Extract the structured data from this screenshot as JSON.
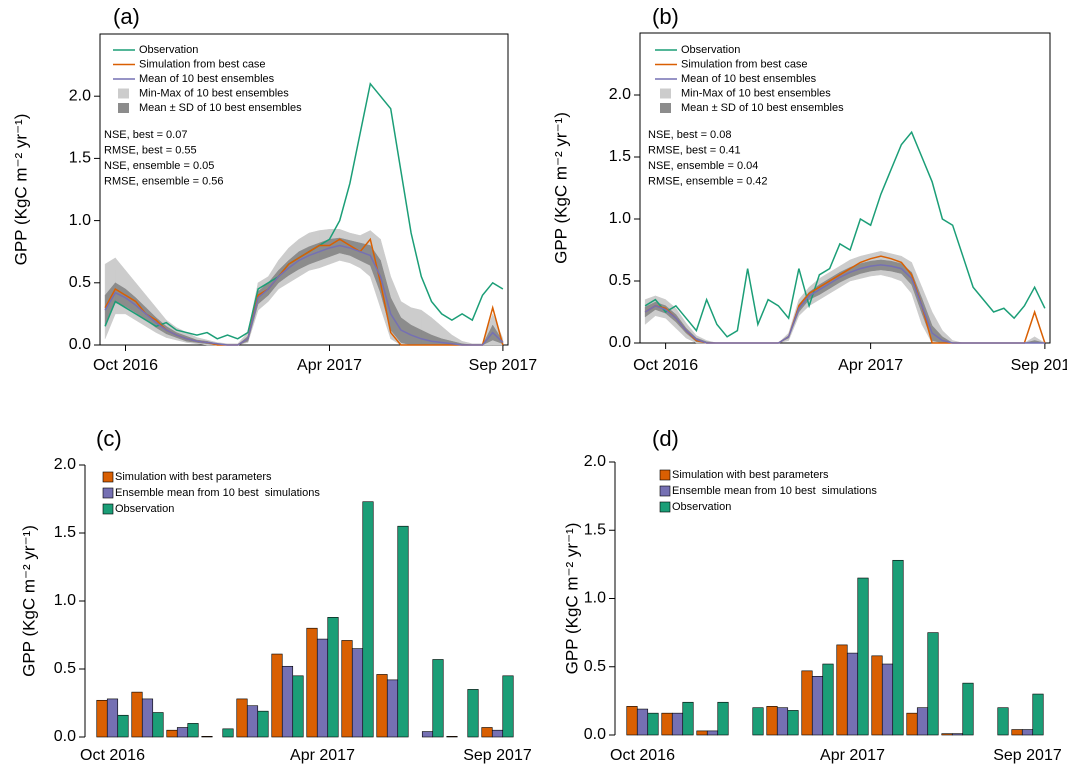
{
  "chart_data": [
    {
      "type": "line",
      "label": "(a)",
      "ylabel": "GPP (KgC m⁻² yr⁻¹)",
      "annotations": [
        "NSE, best = 0.07",
        "RMSE, best = 0.55",
        "NSE, ensemble = 0.05",
        "RMSE, ensemble = 0.56"
      ],
      "categories": [
        null,
        null,
        "Oct 2016",
        null,
        null,
        null,
        null,
        null,
        null,
        null,
        null,
        null,
        null,
        null,
        null,
        null,
        null,
        null,
        null,
        null,
        null,
        null,
        "Apr 2017",
        null,
        null,
        null,
        null,
        null,
        null,
        null,
        null,
        null,
        null,
        null,
        null,
        null,
        null,
        null,
        null,
        "Sep 2017"
      ],
      "ylim": [
        0,
        2.5
      ],
      "yticks": [
        {
          "value": 0,
          "label": "0.0"
        },
        0.5,
        {
          "value": 1,
          "label": "1.0"
        },
        1.5,
        {
          "value": 2,
          "label": "2.0"
        }
      ],
      "series": [
        {
          "name": "Min-Max of 10 best ensembles",
          "color": "#cccccc",
          "upper": [
            0.65,
            0.7,
            0.6,
            0.5,
            0.4,
            0.3,
            0.2,
            0.14,
            0.1,
            0.06,
            0.04,
            0.02,
            0.01,
            0.01,
            0.1,
            0.5,
            0.55,
            0.68,
            0.78,
            0.85,
            0.9,
            0.92,
            0.93,
            0.93,
            0.9,
            0.88,
            0.92,
            0.85,
            0.55,
            0.35,
            0.3,
            0.28,
            0.22,
            0.15,
            0.08,
            0.03,
            0.01,
            0.01,
            0.25,
            0.05
          ],
          "lower": [
            0.05,
            0.25,
            0.25,
            0.2,
            0.15,
            0.1,
            0.06,
            0.04,
            0.02,
            0.01,
            0,
            0,
            0,
            0,
            0.02,
            0.28,
            0.35,
            0.45,
            0.5,
            0.55,
            0.6,
            0.62,
            0.65,
            0.68,
            0.66,
            0.62,
            0.55,
            0.3,
            0.05,
            0,
            0,
            0,
            0,
            0,
            0,
            0,
            0,
            0,
            0,
            0
          ]
        },
        {
          "name": "Mean ± SD of 10 best ensembles",
          "color": "#8c8c8c",
          "upper": [
            0.4,
            0.5,
            0.45,
            0.38,
            0.3,
            0.22,
            0.15,
            0.1,
            0.07,
            0.04,
            0.03,
            0.01,
            0,
            0,
            0.07,
            0.43,
            0.5,
            0.6,
            0.68,
            0.75,
            0.79,
            0.82,
            0.85,
            0.86,
            0.84,
            0.82,
            0.8,
            0.68,
            0.38,
            0.22,
            0.16,
            0.12,
            0.08,
            0.05,
            0.03,
            0.01,
            0,
            0,
            0.16,
            0.03
          ],
          "lower": [
            0.16,
            0.34,
            0.31,
            0.26,
            0.2,
            0.14,
            0.09,
            0.06,
            0.03,
            0.02,
            0.01,
            0,
            0,
            0,
            0.03,
            0.33,
            0.4,
            0.5,
            0.56,
            0.61,
            0.65,
            0.68,
            0.71,
            0.74,
            0.72,
            0.68,
            0.64,
            0.42,
            0.12,
            0.02,
            0,
            0,
            0,
            0,
            0,
            0,
            0,
            0,
            0.04,
            0.01
          ]
        },
        {
          "name": "Observation",
          "color": "#1b9e77",
          "values": [
            0.15,
            0.35,
            0.3,
            0.25,
            0.2,
            0.15,
            0.18,
            0.12,
            0.1,
            0.08,
            0.1,
            0.05,
            0.08,
            0.05,
            0.1,
            0.45,
            0.5,
            0.55,
            0.65,
            0.7,
            0.75,
            0.8,
            0.85,
            1.0,
            1.3,
            1.7,
            2.1,
            2.0,
            1.9,
            1.4,
            0.9,
            0.55,
            0.35,
            0.25,
            0.2,
            0.25,
            0.2,
            0.4,
            0.5,
            0.45
          ]
        },
        {
          "name": "Simulation from best case",
          "color": "#d95f02",
          "values": [
            0.3,
            0.45,
            0.4,
            0.35,
            0.25,
            0.2,
            0.12,
            0.08,
            0.05,
            0.03,
            0.02,
            0,
            0,
            0,
            0.05,
            0.4,
            0.45,
            0.55,
            0.65,
            0.7,
            0.75,
            0.8,
            0.8,
            0.85,
            0.8,
            0.75,
            0.85,
            0.5,
            0.1,
            0,
            0,
            0,
            0,
            0,
            0,
            0,
            0,
            0,
            0.3,
            0
          ]
        },
        {
          "name": "Mean of 10 best ensembles",
          "color": "#7570b3",
          "values": [
            0.28,
            0.42,
            0.38,
            0.32,
            0.25,
            0.18,
            0.12,
            0.08,
            0.05,
            0.03,
            0.02,
            0.01,
            0,
            0,
            0.05,
            0.38,
            0.45,
            0.55,
            0.62,
            0.68,
            0.72,
            0.75,
            0.78,
            0.8,
            0.78,
            0.75,
            0.72,
            0.55,
            0.25,
            0.12,
            0.08,
            0.05,
            0.03,
            0.02,
            0.01,
            0,
            0,
            0,
            0.1,
            0.02
          ]
        }
      ]
    },
    {
      "type": "line",
      "label": "(b)",
      "ylabel": "GPP (KgC m⁻² yr⁻¹)",
      "annotations": [
        "NSE, best = 0.08",
        "RMSE, best = 0.41",
        "NSE, ensemble = 0.04",
        "RMSE, ensemble = 0.42"
      ],
      "categories": [
        null,
        null,
        "Oct 2016",
        null,
        null,
        null,
        null,
        null,
        null,
        null,
        null,
        null,
        null,
        null,
        null,
        null,
        null,
        null,
        null,
        null,
        null,
        null,
        "Apr 2017",
        null,
        null,
        null,
        null,
        null,
        null,
        null,
        null,
        null,
        null,
        null,
        null,
        null,
        null,
        null,
        null,
        "Sep 2017"
      ],
      "ylim": [
        0,
        2.5
      ],
      "yticks": [
        {
          "value": 0,
          "label": "0.0"
        },
        0.5,
        {
          "value": 1,
          "label": "1.0"
        },
        1.5,
        {
          "value": 2,
          "label": "2.0"
        }
      ],
      "series": [
        {
          "name": "Min-Max of 10 best ensembles",
          "color": "#cccccc",
          "upper": [
            0.35,
            0.38,
            0.35,
            0.28,
            0.16,
            0.06,
            0.02,
            0,
            0,
            0,
            0,
            0,
            0,
            0,
            0.08,
            0.35,
            0.45,
            0.52,
            0.57,
            0.62,
            0.67,
            0.7,
            0.72,
            0.74,
            0.72,
            0.7,
            0.65,
            0.45,
            0.25,
            0.1,
            0.02,
            0,
            0,
            0,
            0,
            0,
            0,
            0,
            0.05,
            0
          ],
          "lower": [
            0.15,
            0.22,
            0.2,
            0.12,
            0.04,
            0,
            0,
            0,
            0,
            0,
            0,
            0,
            0,
            0,
            0.02,
            0.22,
            0.3,
            0.35,
            0.4,
            0.45,
            0.5,
            0.52,
            0.54,
            0.55,
            0.53,
            0.5,
            0.4,
            0.15,
            0,
            0,
            0,
            0,
            0,
            0,
            0,
            0,
            0,
            0,
            0,
            0
          ]
        },
        {
          "name": "Mean ± SD of 10 best ensembles",
          "color": "#8c8c8c",
          "upper": [
            0.29,
            0.33,
            0.3,
            0.23,
            0.12,
            0.04,
            0.01,
            0,
            0,
            0,
            0,
            0,
            0,
            0,
            0.06,
            0.31,
            0.41,
            0.47,
            0.52,
            0.57,
            0.61,
            0.64,
            0.66,
            0.67,
            0.66,
            0.64,
            0.57,
            0.36,
            0.14,
            0.05,
            0,
            0,
            0,
            0,
            0,
            0,
            0,
            0,
            0.02,
            0
          ],
          "lower": [
            0.21,
            0.27,
            0.24,
            0.17,
            0.08,
            0.01,
            0,
            0,
            0,
            0,
            0,
            0,
            0,
            0,
            0.04,
            0.25,
            0.35,
            0.39,
            0.44,
            0.49,
            0.53,
            0.56,
            0.58,
            0.59,
            0.58,
            0.56,
            0.47,
            0.24,
            0.02,
            0,
            0,
            0,
            0,
            0,
            0,
            0,
            0,
            0,
            0,
            0
          ]
        },
        {
          "name": "Observation",
          "color": "#1b9e77",
          "values": [
            0.3,
            0.35,
            0.25,
            0.3,
            0.2,
            0.1,
            0.35,
            0.15,
            0.05,
            0.1,
            0.6,
            0.15,
            0.35,
            0.3,
            0.2,
            0.6,
            0.3,
            0.55,
            0.6,
            0.8,
            0.75,
            1.0,
            0.95,
            1.2,
            1.4,
            1.6,
            1.7,
            1.5,
            1.3,
            1.0,
            0.95,
            0.7,
            0.45,
            0.35,
            0.25,
            0.28,
            0.2,
            0.3,
            0.45,
            0.28
          ]
        },
        {
          "name": "Simulation from best case",
          "color": "#d95f02",
          "values": [
            0.25,
            0.3,
            0.28,
            0.2,
            0.1,
            0.02,
            0,
            0,
            0,
            0,
            0,
            0,
            0,
            0,
            0.05,
            0.3,
            0.4,
            0.45,
            0.5,
            0.55,
            0.6,
            0.65,
            0.68,
            0.7,
            0.68,
            0.65,
            0.55,
            0.3,
            0,
            0,
            0,
            0,
            0,
            0,
            0,
            0,
            0,
            0,
            0.25,
            0
          ]
        },
        {
          "name": "Mean of 10 best ensembles",
          "color": "#7570b3",
          "values": [
            0.25,
            0.3,
            0.27,
            0.2,
            0.1,
            0.03,
            0,
            0,
            0,
            0,
            0,
            0,
            0,
            0,
            0.05,
            0.28,
            0.38,
            0.43,
            0.48,
            0.53,
            0.57,
            0.6,
            0.62,
            0.63,
            0.62,
            0.6,
            0.52,
            0.3,
            0.08,
            0.02,
            0,
            0,
            0,
            0,
            0,
            0,
            0,
            0,
            0,
            0
          ]
        }
      ]
    },
    {
      "type": "bar",
      "label": "(c)",
      "ylabel": "GPP (KgC m⁻² yr⁻¹)",
      "categories": [
        "Oct 2016",
        null,
        null,
        null,
        null,
        null,
        "Apr 2017",
        null,
        null,
        null,
        null,
        "Sep 2017"
      ],
      "ylim": [
        0,
        2
      ],
      "yticks": [
        {
          "value": 0,
          "label": "0.0"
        },
        0.5,
        {
          "value": 1,
          "label": "1.0"
        },
        1.5,
        {
          "value": 2,
          "label": "2.0"
        }
      ],
      "series": [
        {
          "name": "Simulation with best parameters",
          "color": "#d95f02",
          "values": [
            0.27,
            0.33,
            0.05,
            0.005,
            0.28,
            0.61,
            0.8,
            0.71,
            0.46,
            0,
            0.005,
            0.07
          ]
        },
        {
          "name": "Ensemble mean from 10 best  simulations",
          "color": "#7570b3",
          "values": [
            0.28,
            0.28,
            0.07,
            0,
            0.23,
            0.52,
            0.72,
            0.65,
            0.42,
            0.04,
            0,
            0.05
          ]
        },
        {
          "name": "Observation",
          "color": "#1b9e77",
          "values": [
            0.16,
            0.18,
            0.1,
            0.06,
            0.19,
            0.45,
            0.88,
            1.73,
            1.55,
            0.57,
            0.35,
            0.45
          ]
        }
      ]
    },
    {
      "type": "bar",
      "label": "(d)",
      "ylabel": "GPP (KgC m⁻² yr⁻¹)",
      "categories": [
        "Oct 2016",
        null,
        null,
        null,
        null,
        null,
        "Apr 2017",
        null,
        null,
        null,
        null,
        "Sep 2017"
      ],
      "ylim": [
        0,
        2
      ],
      "yticks": [
        {
          "value": 0,
          "label": "0.0"
        },
        0.5,
        {
          "value": 1,
          "label": "1.0"
        },
        1.5,
        {
          "value": 2,
          "label": "2.0"
        }
      ],
      "series": [
        {
          "name": "Simulation with best parameters",
          "color": "#d95f02",
          "values": [
            0.21,
            0.16,
            0.03,
            0,
            0.21,
            0.47,
            0.66,
            0.58,
            0.16,
            0.01,
            0,
            0.04
          ]
        },
        {
          "name": "Ensemble mean from 10 best  simulations",
          "color": "#7570b3",
          "values": [
            0.19,
            0.16,
            0.03,
            0,
            0.2,
            0.43,
            0.6,
            0.52,
            0.2,
            0.01,
            0,
            0.04
          ]
        },
        {
          "name": "Observation",
          "color": "#1b9e77",
          "values": [
            0.16,
            0.24,
            0.24,
            0.2,
            0.18,
            0.52,
            1.15,
            1.28,
            0.75,
            0.38,
            0.2,
            0.3
          ]
        }
      ]
    }
  ]
}
